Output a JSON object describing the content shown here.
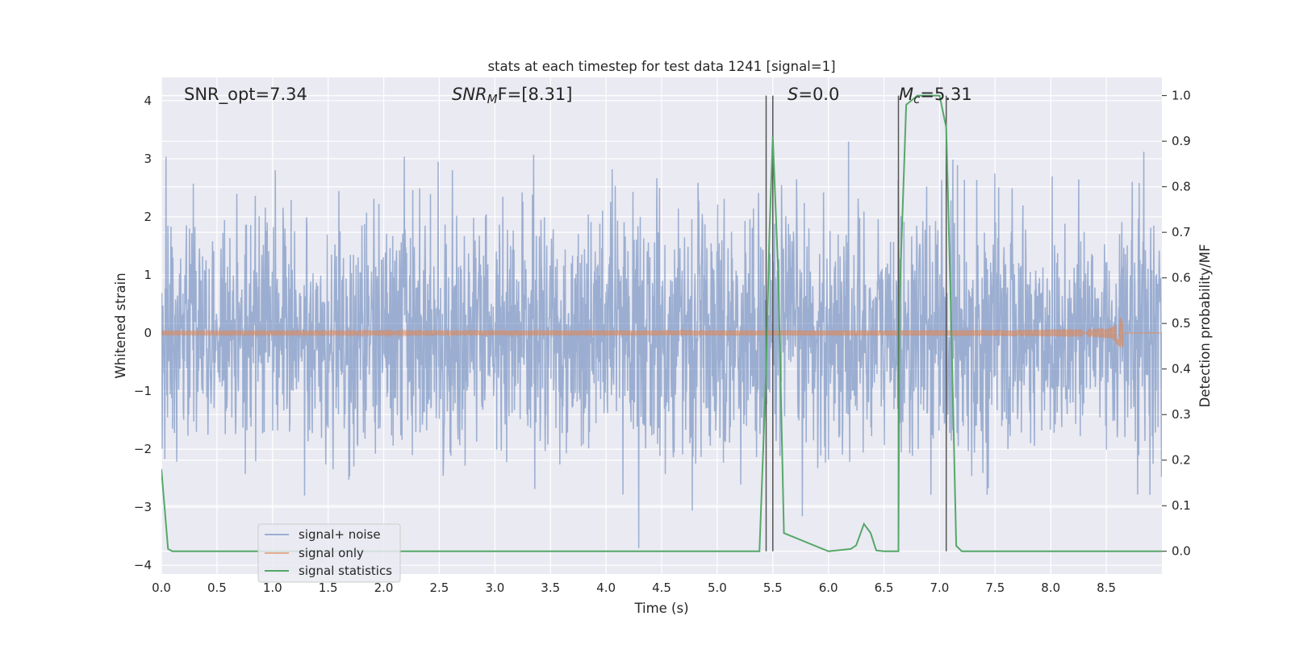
{
  "chart_data": {
    "type": "line",
    "title": "stats at each timestep for test data 1241 [signal=1]",
    "xlabel": "Time (s)",
    "ylabel": "Whitened strain",
    "y2label": "Detection probability/MF",
    "xlim": [
      0,
      9
    ],
    "ylim": [
      -4.15,
      4.4
    ],
    "y2lim": [
      -0.05,
      1.04
    ],
    "x_ticks": [
      "0.0",
      "0.5",
      "1.0",
      "1.5",
      "2.0",
      "2.5",
      "3.0",
      "3.5",
      "4.0",
      "4.5",
      "5.0",
      "5.5",
      "6.0",
      "6.5",
      "7.0",
      "7.5",
      "8.0",
      "8.5"
    ],
    "y_ticks": [
      "4",
      "3",
      "2",
      "1",
      "0",
      "−1",
      "−2",
      "−3",
      "−4"
    ],
    "y2_ticks": [
      "1.0",
      "0.9",
      "0.8",
      "0.7",
      "0.6",
      "0.5",
      "0.4",
      "0.3",
      "0.2",
      "0.1",
      "0.0"
    ],
    "grid": true,
    "legend_position": "lower-left",
    "annotations": {
      "snr_opt": "SNR_opt=7.34",
      "snr_mf_main": "SNR",
      "snr_mf_sub": "M",
      "snr_mf_rest": "F=[8.31]",
      "s_main": "S",
      "s_rest": "=0.0",
      "mc_main": "M",
      "mc_sub": "c",
      "mc_rest": "=5.31"
    },
    "vertical_lines": [
      5.44,
      5.5,
      6.63,
      7.06
    ],
    "series": [
      {
        "name": "signal+ noise",
        "color": "#4c72b0",
        "note_visual": "dense whitened noise spanning roughly -3.7 to 4.0"
      },
      {
        "name": "signal only",
        "color": "#dd8452",
        "note_visual": "chirp growing toward merger near 8.65 s"
      },
      {
        "name": "signal statistics",
        "color": "#55a868",
        "axis": "right",
        "x": [
          0.0,
          0.06,
          0.1,
          0.2,
          1.0,
          2.0,
          3.0,
          4.0,
          5.0,
          5.38,
          5.44,
          5.47,
          5.5,
          5.55,
          5.6,
          6.0,
          6.2,
          6.25,
          6.32,
          6.38,
          6.43,
          6.5,
          6.63,
          6.64,
          6.7,
          6.75,
          6.8,
          6.9,
          7.0,
          7.06,
          7.1,
          7.15,
          7.2,
          8.0,
          9.0
        ],
        "y": [
          0.18,
          0.005,
          0.0,
          0.0,
          0.0,
          0.0,
          0.0,
          0.0,
          0.0,
          0.0,
          0.4,
          0.7,
          0.91,
          0.6,
          0.04,
          0.0,
          0.005,
          0.013,
          0.06,
          0.04,
          0.002,
          0.0,
          0.0,
          0.55,
          0.98,
          0.99,
          1.0,
          1.0,
          1.0,
          0.93,
          0.55,
          0.012,
          0.0,
          0.0,
          0.0
        ]
      }
    ]
  }
}
